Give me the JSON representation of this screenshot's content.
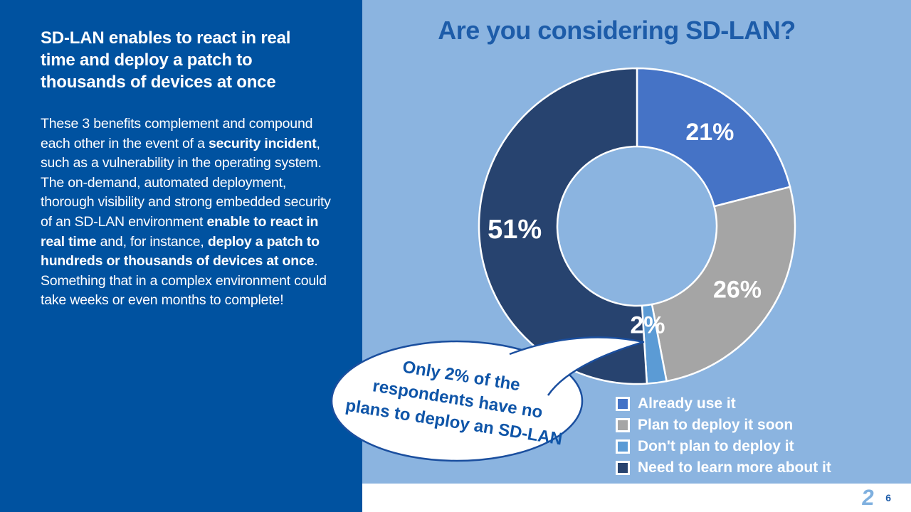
{
  "left_panel": {
    "title": "SD-LAN enables to react in real time and deploy a patch to thousands of devices at once",
    "body_segments": [
      {
        "text": "These 3 benefits complement and compound each other in the event of a ",
        "bold": false
      },
      {
        "text": "security incident",
        "bold": true
      },
      {
        "text": ", such as a vulnerability in the operating system. The on-demand, automated deployment, thorough visibility and strong embedded security of an SD-LAN environment ",
        "bold": false
      },
      {
        "text": "enable to react in real time",
        "bold": true
      },
      {
        "text": " and, for instance, ",
        "bold": false
      },
      {
        "text": "deploy a patch to hundreds or thousands of devices at once",
        "bold": true
      },
      {
        "text": ". Something that in a complex environment could take weeks or even months to complete!",
        "bold": false
      }
    ]
  },
  "chart_data": {
    "type": "pie",
    "subtype": "donut",
    "title": "Are you considering SD-LAN?",
    "categories": [
      "Already use it",
      "Plan to deploy it soon",
      "Don't plan to deploy it",
      "Need to learn more about it"
    ],
    "values": [
      21,
      26,
      2,
      51
    ],
    "unit": "%",
    "data_labels": [
      "21%",
      "26%",
      "2%",
      "51%"
    ],
    "colors": [
      "#4573C6",
      "#A5A5A5",
      "#5B9BD5",
      "#27436F"
    ],
    "start_angle_deg": 0,
    "direction": "clockwise",
    "legend_position": "bottom-right",
    "slice_border_color": "#FFFFFF"
  },
  "callout": {
    "text": "Only 2% of the\nrespondents have no\nplans to deploy an SD-LAN",
    "border_color": "#1A4E9E",
    "text_color": "#0F55A8"
  },
  "footer": {
    "logo_glyph": "2",
    "page_number": "6"
  },
  "colors": {
    "left_panel_bg": "#0052A0",
    "right_panel_bg": "#8BB4E0",
    "chart_title": "#1D5CA9",
    "data_label_text": "#FFFFFF"
  }
}
